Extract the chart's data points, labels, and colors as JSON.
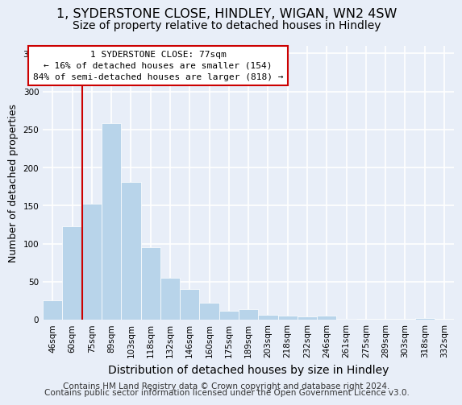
{
  "title": "1, SYDERSTONE CLOSE, HINDLEY, WIGAN, WN2 4SW",
  "subtitle": "Size of property relative to detached houses in Hindley",
  "xlabel": "Distribution of detached houses by size in Hindley",
  "ylabel": "Number of detached properties",
  "bar_color": "#b8d4ea",
  "bar_edge_color": "#b8d4ea",
  "categories": [
    "46sqm",
    "60sqm",
    "75sqm",
    "89sqm",
    "103sqm",
    "118sqm",
    "132sqm",
    "146sqm",
    "160sqm",
    "175sqm",
    "189sqm",
    "203sqm",
    "218sqm",
    "232sqm",
    "246sqm",
    "261sqm",
    "275sqm",
    "289sqm",
    "303sqm",
    "318sqm",
    "332sqm"
  ],
  "values": [
    25,
    123,
    153,
    258,
    181,
    95,
    55,
    40,
    22,
    12,
    14,
    6,
    5,
    4,
    5,
    1,
    0,
    0,
    0,
    2,
    0
  ],
  "vline_index": 2,
  "vline_color": "#cc0000",
  "ylim": [
    0,
    360
  ],
  "yticks": [
    0,
    50,
    100,
    150,
    200,
    250,
    300,
    350
  ],
  "annotation_title": "1 SYDERSTONE CLOSE: 77sqm",
  "annotation_line1": "← 16% of detached houses are smaller (154)",
  "annotation_line2": "84% of semi-detached houses are larger (818) →",
  "annotation_box_color": "#ffffff",
  "annotation_box_edge": "#cc0000",
  "footer1": "Contains HM Land Registry data © Crown copyright and database right 2024.",
  "footer2": "Contains public sector information licensed under the Open Government Licence v3.0.",
  "background_color": "#e8eef8",
  "plot_background": "#e8eef8",
  "grid_color": "#ffffff",
  "title_fontsize": 11.5,
  "subtitle_fontsize": 10,
  "xlabel_fontsize": 10,
  "ylabel_fontsize": 9,
  "tick_fontsize": 7.5,
  "footer_fontsize": 7.5
}
